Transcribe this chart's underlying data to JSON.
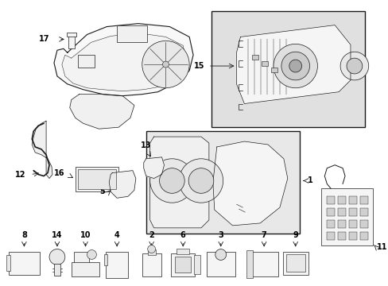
{
  "bg_color": "#ffffff",
  "line_color": "#1a1a1a",
  "fig_width": 4.89,
  "fig_height": 3.6,
  "dpi": 100,
  "box15_bg": "#e8e8e8",
  "box1_bg": "#e8e8e8",
  "part_fill": "#ffffff",
  "part_stroke": "#1a1a1a"
}
